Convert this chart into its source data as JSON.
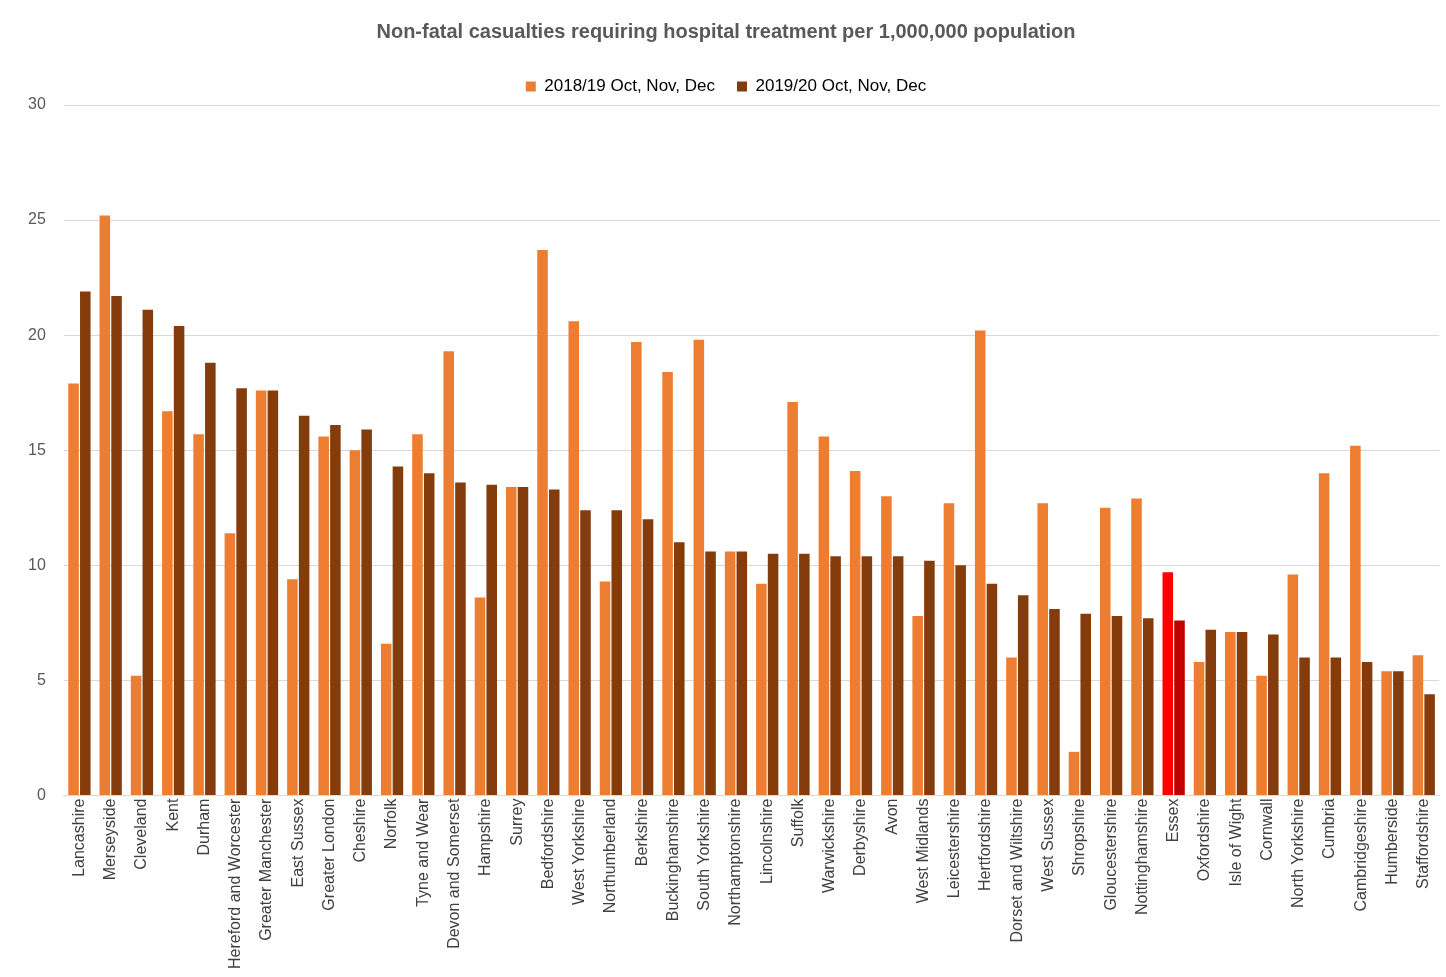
{
  "chart_data": {
    "type": "bar",
    "title": "Non-fatal casualties requiring hospital treatment per 1,000,000 population",
    "categories": [
      "Lancashire",
      "Merseyside",
      "Cleveland",
      "Kent",
      "Durham",
      "Hereford and Worcester",
      "Greater Manchester",
      "East Sussex",
      "Greater London",
      "Cheshire",
      "Norfolk",
      "Tyne and Wear",
      "Devon and Somerset",
      "Hampshire",
      "Surrey",
      "Bedfordshire",
      "West Yorkshire",
      "Northumberland",
      "Berkshire",
      "Buckinghamshire",
      "South Yorkshire",
      "Northamptonshire",
      "Lincolnshire",
      "Suffolk",
      "Warwickshire",
      "Derbyshire",
      "Avon",
      "West Midlands",
      "Leicestershire",
      "Hertfordshire",
      "Dorset and Wiltshire",
      "West Sussex",
      "Shropshire",
      "Gloucestershire",
      "Nottinghamshire",
      "Essex",
      "Oxfordshire",
      "Isle of Wight",
      "Cornwall",
      "North Yorkshire",
      "Cumbria",
      "Cambridgeshire",
      "Humberside",
      "Staffordshire"
    ],
    "series": [
      {
        "name": "2018/19 Oct, Nov, Dec",
        "color": "#ed7d31",
        "colors": [
          "#ed7d31",
          "#ed7d31",
          "#ed7d31",
          "#ed7d31",
          "#ed7d31",
          "#ed7d31",
          "#ed7d31",
          "#ed7d31",
          "#ed7d31",
          "#ed7d31",
          "#ed7d31",
          "#ed7d31",
          "#ed7d31",
          "#ed7d31",
          "#ed7d31",
          "#ed7d31",
          "#ed7d31",
          "#ed7d31",
          "#ed7d31",
          "#ed7d31",
          "#ed7d31",
          "#ed7d31",
          "#ed7d31",
          "#ed7d31",
          "#ed7d31",
          "#ed7d31",
          "#ed7d31",
          "#ed7d31",
          "#ed7d31",
          "#ed7d31",
          "#ed7d31",
          "#ed7d31",
          "#ed7d31",
          "#ed7d31",
          "#ed7d31",
          "#ff0000",
          "#ed7d31",
          "#ed7d31",
          "#ed7d31",
          "#ed7d31",
          "#ed7d31",
          "#ed7d31",
          "#ed7d31",
          "#ed7d31"
        ],
        "values": [
          17.9,
          25.2,
          5.2,
          16.7,
          15.7,
          11.4,
          17.6,
          9.4,
          15.6,
          15.0,
          6.6,
          15.7,
          19.3,
          8.6,
          13.4,
          23.7,
          20.6,
          9.3,
          19.7,
          18.4,
          19.8,
          10.6,
          9.2,
          17.1,
          15.6,
          14.1,
          13.0,
          7.8,
          12.7,
          20.2,
          6.0,
          12.7,
          1.9,
          12.5,
          12.9,
          9.7,
          5.8,
          7.1,
          5.2,
          9.6,
          14.0,
          15.2,
          5.4,
          6.1
        ]
      },
      {
        "name": "2019/20 Oct, Nov, Dec",
        "color": "#843c0c",
        "colors": [
          "#843c0c",
          "#843c0c",
          "#843c0c",
          "#843c0c",
          "#843c0c",
          "#843c0c",
          "#843c0c",
          "#843c0c",
          "#843c0c",
          "#843c0c",
          "#843c0c",
          "#843c0c",
          "#843c0c",
          "#843c0c",
          "#843c0c",
          "#843c0c",
          "#843c0c",
          "#843c0c",
          "#843c0c",
          "#843c0c",
          "#843c0c",
          "#843c0c",
          "#843c0c",
          "#843c0c",
          "#843c0c",
          "#843c0c",
          "#843c0c",
          "#843c0c",
          "#843c0c",
          "#843c0c",
          "#843c0c",
          "#843c0c",
          "#843c0c",
          "#843c0c",
          "#843c0c",
          "#c00000",
          "#843c0c",
          "#843c0c",
          "#843c0c",
          "#843c0c",
          "#843c0c",
          "#843c0c",
          "#843c0c",
          "#843c0c"
        ],
        "values": [
          21.9,
          21.7,
          21.1,
          20.4,
          18.8,
          17.7,
          17.6,
          16.5,
          16.1,
          15.9,
          14.3,
          14.0,
          13.6,
          13.5,
          13.4,
          13.3,
          12.4,
          12.4,
          12.0,
          11.0,
          10.6,
          10.6,
          10.5,
          10.5,
          10.4,
          10.4,
          10.4,
          10.2,
          10.0,
          9.2,
          8.7,
          8.1,
          7.9,
          7.8,
          7.7,
          7.6,
          7.2,
          7.1,
          7.0,
          6.0,
          6.0,
          5.8,
          5.4,
          4.4
        ]
      }
    ],
    "ylim": [
      0,
      30
    ],
    "yticks": [
      0,
      5,
      10,
      15,
      20,
      25,
      30
    ],
    "grid": "y",
    "legend": "top"
  }
}
